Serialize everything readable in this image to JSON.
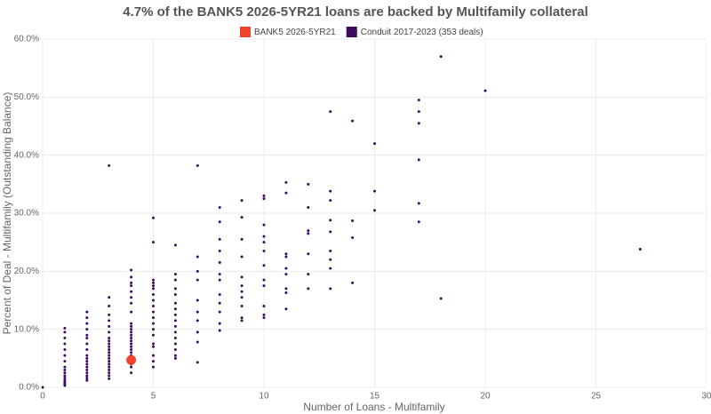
{
  "chart_data": {
    "type": "scatter",
    "title": "4.7% of the BANK5 2026-5YR21 loans are backed by Multifamily collateral",
    "x_label": "Number of Loans - Multifamily",
    "y_label": "Percent of Deal - Multifamily (Outstanding Balance)",
    "xlim": [
      0,
      30
    ],
    "xticks": [
      0,
      5,
      10,
      15,
      20,
      25,
      30
    ],
    "ylim": [
      0,
      60
    ],
    "yticks": [
      {
        "value": 0,
        "label": "0.0%"
      },
      {
        "value": 10,
        "label": "10.0%"
      },
      {
        "value": 20,
        "label": "20.0%"
      },
      {
        "value": 30,
        "label": "30.0%"
      },
      {
        "value": 40,
        "label": "40.0%"
      },
      {
        "value": 50,
        "label": "50.0%"
      },
      {
        "value": 60,
        "label": "60.0%"
      }
    ],
    "grid": true,
    "series": [
      {
        "name": "BANK5 2026-5YR21",
        "color": "#f0452b",
        "x": [
          4
        ],
        "values": [
          4.7
        ]
      },
      {
        "name": "Conduit 2017-2023 (353 deals)",
        "color": "#3d0b5c",
        "x": [
          0,
          1,
          1,
          1,
          1,
          1,
          1,
          1,
          1,
          1,
          1,
          1,
          1,
          1,
          1,
          1,
          1,
          2,
          2,
          2,
          2,
          2,
          2,
          2,
          2,
          2,
          2,
          2,
          2,
          2,
          2,
          2,
          2,
          2,
          2,
          3,
          3,
          3,
          3,
          3,
          3,
          3,
          3,
          3,
          3,
          3,
          3,
          3,
          3,
          3,
          3,
          3,
          3,
          3,
          3,
          3,
          3,
          4,
          4,
          4,
          4,
          4,
          4,
          4,
          4,
          4,
          4,
          4,
          4,
          4,
          4,
          4,
          4,
          4,
          4,
          4,
          4,
          4,
          4,
          4,
          4,
          5,
          5,
          5,
          5,
          5,
          5,
          5,
          5,
          5,
          5,
          5,
          5,
          5,
          5,
          5,
          5,
          5,
          5,
          5,
          6,
          6,
          6,
          6,
          6,
          6,
          6,
          6,
          6,
          6,
          6,
          6,
          6,
          6,
          6,
          6,
          7,
          7,
          7,
          7,
          7,
          7,
          7,
          7,
          7,
          7,
          8,
          8,
          8,
          8,
          8,
          8,
          8,
          8,
          8,
          8,
          8,
          8,
          9,
          9,
          9,
          9,
          9,
          9,
          9,
          9,
          9,
          9,
          9,
          10,
          10,
          10,
          10,
          10,
          10,
          10,
          10,
          10,
          10,
          10,
          10,
          11,
          11,
          11,
          11,
          11,
          11,
          11,
          11,
          11,
          12,
          12,
          12,
          12,
          12,
          12,
          12,
          13,
          13,
          13,
          13,
          13,
          13,
          13,
          13,
          13,
          14,
          14,
          14,
          14,
          15,
          15,
          15,
          17,
          17,
          17,
          17,
          17,
          17,
          18,
          18,
          20,
          27
        ],
        "values": [
          0,
          0.3,
          0.6,
          0.9,
          1.2,
          1.6,
          2.0,
          2.5,
          3.0,
          3.5,
          4.5,
          5.5,
          6.5,
          7.5,
          8.5,
          9.5,
          10.2,
          1.2,
          1.6,
          2.0,
          2.5,
          3.0,
          3.5,
          4.0,
          4.5,
          5.0,
          5.5,
          6.5,
          7.5,
          8.5,
          9.0,
          10.0,
          11.0,
          12.0,
          13.0,
          1.5,
          2.0,
          2.5,
          3.0,
          3.5,
          4.0,
          4.5,
          5.0,
          5.5,
          6.0,
          6.5,
          7.0,
          7.5,
          8.0,
          8.5,
          9.5,
          10.5,
          11.5,
          12.5,
          14.0,
          15.5,
          38.2,
          2.5,
          3.5,
          4.0,
          5.0,
          5.5,
          6.0,
          6.5,
          7.0,
          7.5,
          8.0,
          8.5,
          9.0,
          9.5,
          10.0,
          10.5,
          11.0,
          13.0,
          14.5,
          15.5,
          16.5,
          17.5,
          18.0,
          19.0,
          20.2,
          3.5,
          4.5,
          5.5,
          7.0,
          7.5,
          9.0,
          10.0,
          11.0,
          12.0,
          13.0,
          14.0,
          15.0,
          16.0,
          17.0,
          17.5,
          18.0,
          18.5,
          25.0,
          29.2,
          5.0,
          5.5,
          6.5,
          7.5,
          8.5,
          9.5,
          10.5,
          11.5,
          12.5,
          13.5,
          14.5,
          16.0,
          17.0,
          18.5,
          19.5,
          24.5,
          4.3,
          7.8,
          9.5,
          11.5,
          13.0,
          15.0,
          18.5,
          20.0,
          22.5,
          38.2,
          9.8,
          11.0,
          13.0,
          14.5,
          16.0,
          18.5,
          19.5,
          21.5,
          23.5,
          25.5,
          28.5,
          31.0,
          11.5,
          12.0,
          14.0,
          15.5,
          16.5,
          17.5,
          19.0,
          22.5,
          25.5,
          29.3,
          32.2,
          12.0,
          12.5,
          14.0,
          17.5,
          18.5,
          21.0,
          23.5,
          25.0,
          26.0,
          28.0,
          32.5,
          33.0,
          13.5,
          16.3,
          17.0,
          19.5,
          20.5,
          22.5,
          23.0,
          33.5,
          35.3,
          17.0,
          19.5,
          23.0,
          26.5,
          27.0,
          31.0,
          35.0,
          17.0,
          20.5,
          22.0,
          23.5,
          26.8,
          28.8,
          32.2,
          33.8,
          47.5,
          18.0,
          25.8,
          28.7,
          45.9,
          30.5,
          33.8,
          42.0,
          28.5,
          31.7,
          39.2,
          45.5,
          47.5,
          49.5,
          15.3,
          57.0,
          51.1,
          23.8
        ]
      }
    ]
  }
}
